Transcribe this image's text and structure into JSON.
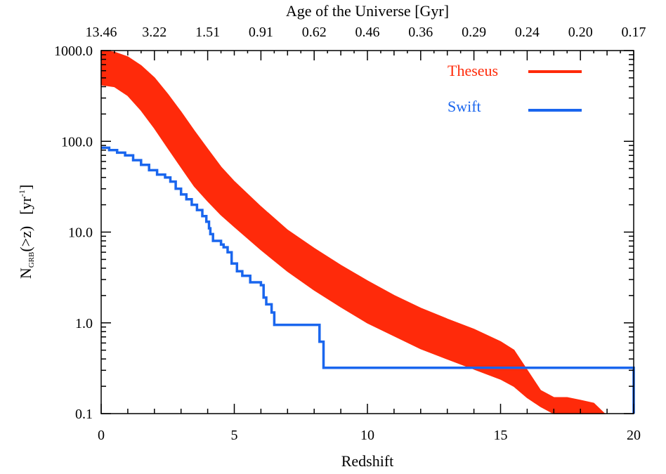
{
  "chart_data": {
    "type": "line",
    "x_scale": "linear",
    "y_scale": "log",
    "xlim": [
      0,
      20
    ],
    "ylim": [
      0.1,
      1000
    ],
    "xlabel": "Redshift",
    "ylabel_main": "N",
    "ylabel_sub": "GRB",
    "ylabel_rest": "(>z)",
    "ylabel_unit": "[yr",
    "ylabel_unit_sup": "-1",
    "ylabel_unit_close": "]",
    "top_axis_label": "Age of the Universe [Gyr]",
    "x_ticks": [
      0,
      5,
      10,
      15,
      20
    ],
    "x_tick_labels": [
      "0",
      "5",
      "10",
      "15",
      "20"
    ],
    "y_ticks": [
      0.1,
      1,
      10,
      100,
      1000
    ],
    "y_tick_labels": [
      "0.1",
      "1.0",
      "10.0",
      "100.0",
      "1000.0"
    ],
    "top_ticks_z": [
      0,
      2,
      4,
      6,
      8,
      10,
      12,
      14,
      16,
      18,
      20
    ],
    "top_tick_labels": [
      "13.46",
      "3.22",
      "1.51",
      "0.91",
      "0.62",
      "0.46",
      "0.36",
      "0.29",
      "0.24",
      "0.20",
      "0.17"
    ],
    "legend": [
      {
        "name": "Theseus",
        "color": "#ff2a0a",
        "style": "band"
      },
      {
        "name": "Swift",
        "color": "#1a66ee",
        "style": "line"
      }
    ],
    "series": [
      {
        "name": "Theseus",
        "type": "band",
        "color": "#ff2a0a",
        "z": [
          0,
          0.5,
          1,
          1.5,
          2,
          2.5,
          3,
          3.5,
          4,
          4.5,
          5,
          6,
          7,
          8,
          9,
          10,
          11,
          12,
          13,
          14,
          15,
          15.5,
          16,
          16.5,
          17,
          17.5,
          18,
          18.5,
          18.9
        ],
        "upper": [
          1000,
          960,
          850,
          680,
          500,
          330,
          210,
          130,
          82,
          52,
          36,
          19,
          10.5,
          6.6,
          4.3,
          2.9,
          2.0,
          1.45,
          1.1,
          0.85,
          0.62,
          0.5,
          0.3,
          0.18,
          0.15,
          0.15,
          0.14,
          0.13,
          0.1
        ],
        "lower": [
          420,
          400,
          320,
          220,
          140,
          85,
          52,
          32,
          22,
          15.5,
          11.5,
          6.4,
          3.7,
          2.3,
          1.5,
          1.0,
          0.72,
          0.52,
          0.4,
          0.31,
          0.24,
          0.2,
          0.15,
          0.12,
          0.1,
          0.1,
          0.1,
          0.1,
          0.1
        ]
      },
      {
        "name": "Swift",
        "type": "step",
        "color": "#1a66ee",
        "x": [
          0,
          0.3,
          0.6,
          0.9,
          1.2,
          1.5,
          1.8,
          2.1,
          2.4,
          2.6,
          2.8,
          3.0,
          3.2,
          3.4,
          3.6,
          3.8,
          3.95,
          4.05,
          4.1,
          4.2,
          4.5,
          4.6,
          4.75,
          4.9,
          5.1,
          5.3,
          5.6,
          5.8,
          6.0,
          6.1,
          6.2,
          6.4,
          6.5,
          8.05,
          8.2,
          8.35,
          9.25,
          20
        ],
        "y": [
          85,
          80,
          75,
          70,
          62,
          55,
          48,
          43,
          40,
          36,
          30,
          26,
          23,
          20,
          17.5,
          15,
          13,
          11,
          9.5,
          8,
          7.3,
          6.8,
          6.0,
          4.5,
          3.7,
          3.3,
          2.8,
          2.8,
          2.6,
          1.9,
          1.6,
          1.3,
          0.95,
          0.95,
          0.62,
          0.32,
          0.32,
          0.1
        ]
      }
    ]
  }
}
